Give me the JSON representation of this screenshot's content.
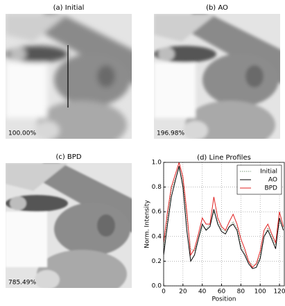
{
  "panels": [
    {
      "title": "(a) Initial",
      "zoom_label": "100.00%"
    },
    {
      "title": "(b) AO",
      "zoom_label": "196.98%"
    },
    {
      "title": "(c) BPD",
      "zoom_label": "785.49%"
    }
  ],
  "chart_data": {
    "type": "line",
    "title": "(d) Line Profiles",
    "x_label": "Position",
    "y_label": "Norm. Intensity",
    "x": [
      0,
      4,
      8,
      12,
      16,
      20,
      24,
      28,
      32,
      36,
      40,
      44,
      48,
      52,
      56,
      60,
      64,
      68,
      72,
      76,
      80,
      84,
      88,
      92,
      96,
      100,
      104,
      108,
      112,
      116,
      120,
      124
    ],
    "series": [
      {
        "name": "Initial",
        "color": "#7a9a7a",
        "linestyle": "dotted",
        "values": [
          0.3,
          0.55,
          0.78,
          0.86,
          0.95,
          0.85,
          0.55,
          0.3,
          0.28,
          0.38,
          0.48,
          0.46,
          0.5,
          0.6,
          0.52,
          0.46,
          0.44,
          0.48,
          0.52,
          0.47,
          0.33,
          0.27,
          0.2,
          0.17,
          0.17,
          0.24,
          0.4,
          0.47,
          0.4,
          0.33,
          0.52,
          0.47
        ]
      },
      {
        "name": "AO",
        "color": "#000000",
        "linestyle": "solid",
        "values": [
          0.25,
          0.5,
          0.72,
          0.85,
          0.97,
          0.8,
          0.45,
          0.2,
          0.25,
          0.38,
          0.5,
          0.45,
          0.48,
          0.62,
          0.5,
          0.44,
          0.42,
          0.48,
          0.5,
          0.45,
          0.3,
          0.25,
          0.18,
          0.14,
          0.15,
          0.22,
          0.4,
          0.45,
          0.38,
          0.3,
          0.55,
          0.45
        ]
      },
      {
        "name": "BPD",
        "color": "#e02020",
        "linestyle": "solid",
        "values": [
          0.35,
          0.6,
          0.8,
          0.9,
          1.0,
          0.88,
          0.6,
          0.25,
          0.3,
          0.42,
          0.55,
          0.5,
          0.5,
          0.72,
          0.55,
          0.48,
          0.45,
          0.52,
          0.58,
          0.5,
          0.38,
          0.3,
          0.2,
          0.15,
          0.18,
          0.28,
          0.45,
          0.5,
          0.42,
          0.35,
          0.6,
          0.48
        ]
      }
    ],
    "xlim": [
      0,
      125
    ],
    "xticks": [
      0,
      20,
      40,
      60,
      80,
      100,
      120
    ],
    "ylim": [
      0,
      1
    ],
    "yticks": [
      {
        "value": 0,
        "label": "0.0"
      },
      {
        "value": 0.2,
        "label": "0.2"
      },
      {
        "value": 0.4,
        "label": "0.4"
      },
      {
        "value": 0.6,
        "label": "0.6"
      },
      {
        "value": 0.8,
        "label": "0.8"
      },
      {
        "value": 1,
        "label": "1.0"
      }
    ],
    "grid": true,
    "legend_loc": "upper right"
  }
}
